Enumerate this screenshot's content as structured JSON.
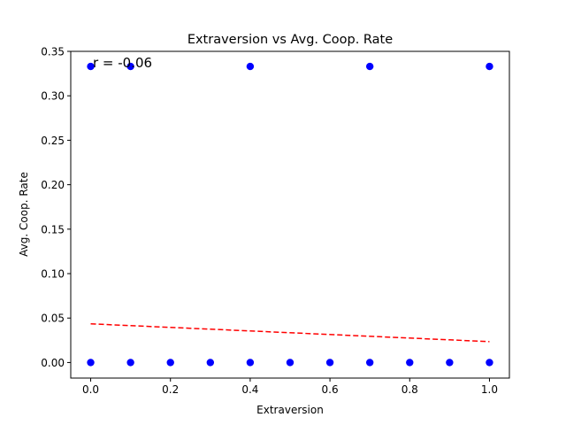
{
  "chart_data": {
    "type": "scatter",
    "title": "Extraversion vs Avg. Coop. Rate",
    "xlabel": "Extraversion",
    "ylabel": "Avg. Coop. Rate",
    "xlim": [
      -0.05,
      1.05
    ],
    "ylim": [
      -0.0175,
      0.35
    ],
    "xticks": [
      "0.0",
      "0.2",
      "0.4",
      "0.6",
      "0.8",
      "1.0"
    ],
    "yticks": [
      "0.00",
      "0.05",
      "0.10",
      "0.15",
      "0.20",
      "0.25",
      "0.30",
      "0.35"
    ],
    "grid": false,
    "annotation": "r = -0.06",
    "point_color": "#0000ff",
    "trend_color": "#ff0000",
    "points": [
      {
        "x": 0.0,
        "y": 0.333
      },
      {
        "x": 0.1,
        "y": 0.333
      },
      {
        "x": 0.4,
        "y": 0.333
      },
      {
        "x": 0.7,
        "y": 0.333
      },
      {
        "x": 1.0,
        "y": 0.333
      },
      {
        "x": 0.0,
        "y": 0.0
      },
      {
        "x": 0.1,
        "y": 0.0
      },
      {
        "x": 0.2,
        "y": 0.0
      },
      {
        "x": 0.3,
        "y": 0.0
      },
      {
        "x": 0.4,
        "y": 0.0
      },
      {
        "x": 0.5,
        "y": 0.0
      },
      {
        "x": 0.6,
        "y": 0.0
      },
      {
        "x": 0.7,
        "y": 0.0
      },
      {
        "x": 0.8,
        "y": 0.0
      },
      {
        "x": 0.9,
        "y": 0.0
      },
      {
        "x": 1.0,
        "y": 0.0
      }
    ],
    "trendline": {
      "x": [
        0.0,
        1.0
      ],
      "y": [
        0.0435,
        0.0235
      ],
      "style": "dashed"
    }
  }
}
